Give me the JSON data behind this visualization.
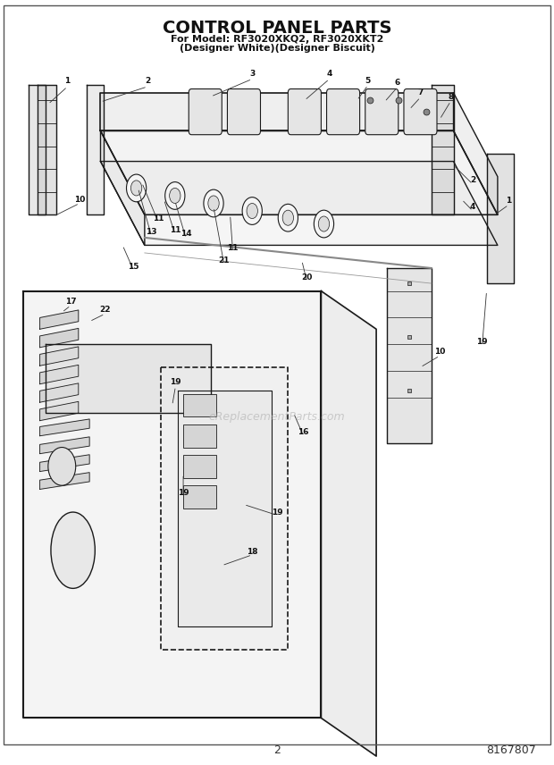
{
  "title": "CONTROL PANEL PARTS",
  "subtitle_line1": "For Model: RF3020XKQ2, RF3020XKT2",
  "subtitle_line2": "(Designer White)(Designer Biscuit)",
  "page_number": "2",
  "part_number": "8167807",
  "background_color": "#ffffff",
  "line_color": "#1a1a1a",
  "watermark": "eReplacementParts.com",
  "title_fontsize": 14,
  "subtitle_fontsize": 8
}
